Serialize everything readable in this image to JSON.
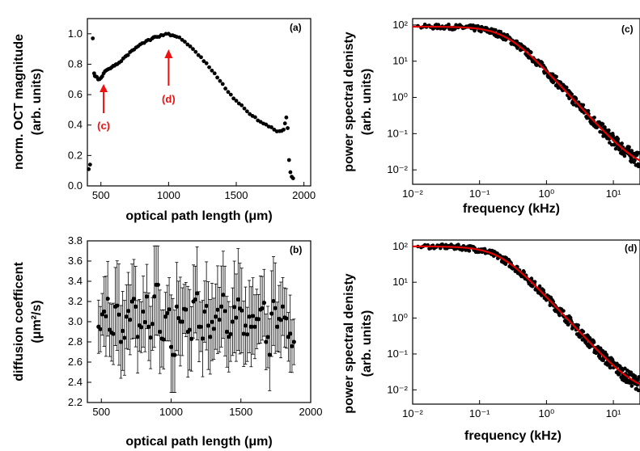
{
  "figure": {
    "panels": [
      {
        "tag": "(a)",
        "xlabel": "optical path length (μm)",
        "ylabel_line1": "norm. OCT magnitude",
        "ylabel_line2": "(arb. units)",
        "xticks": [
          "500",
          "1000",
          "1500",
          "2000"
        ],
        "yticks": [
          "0.0",
          "0.2",
          "0.4",
          "0.6",
          "0.8",
          "1.0"
        ],
        "annotations": [
          {
            "text": "(c)",
            "x": 520,
            "y": 0.78
          },
          {
            "text": "(d)",
            "x": 1000,
            "y": 0.97
          }
        ]
      },
      {
        "tag": "(b)",
        "xlabel": "optical path length (μm)",
        "ylabel_line1": "diffusion coefficent",
        "ylabel_line2": "(μm²/s)",
        "xticks": [
          "500",
          "1000",
          "1500",
          "2000"
        ],
        "yticks": [
          "2.2",
          "2.4",
          "2.6",
          "2.8",
          "3.0",
          "3.2",
          "3.4",
          "3.6",
          "3.8"
        ]
      },
      {
        "tag": "(c)",
        "xlabel": "frequency (kHz)",
        "ylabel_line1": "power spectral denisty",
        "ylabel_line2": "(arb. units)",
        "xticks": [
          "10⁻²",
          "10⁻¹",
          "10⁰",
          "10¹"
        ],
        "yticks": [
          "10⁻²",
          "10⁻¹",
          "10⁰",
          "10¹",
          "10²"
        ]
      },
      {
        "tag": "(d)",
        "xlabel": "frequency (kHz)",
        "ylabel_line1": "power spectral denisty",
        "ylabel_line2": "(arb. units)",
        "xticks": [
          "10⁻²",
          "10⁻¹",
          "10⁰",
          "10¹"
        ],
        "yticks": [
          "10⁻²",
          "10⁻¹",
          "10⁰",
          "10¹",
          "10²"
        ]
      }
    ]
  },
  "chart_data": [
    {
      "type": "scatter",
      "panel": "(a)",
      "xlim": [
        400,
        2050
      ],
      "ylim": [
        0.0,
        1.1
      ],
      "xlabel": "optical path length (μm)",
      "ylabel": "norm. OCT magnitude (arb. units)",
      "marker_color": "#000000",
      "series": [
        {
          "x": [
            410,
            420,
            440,
            450,
            460,
            480,
            500,
            520,
            540,
            560,
            580,
            600,
            620,
            650,
            680,
            700,
            730,
            760,
            790,
            820,
            850,
            880,
            900,
            930,
            960,
            1000,
            1030,
            1060,
            1100,
            1140,
            1180,
            1220,
            1260,
            1300,
            1340,
            1380,
            1420,
            1460,
            1500,
            1540,
            1580,
            1620,
            1660,
            1700,
            1740,
            1780,
            1820,
            1850,
            1870,
            1880,
            1890,
            1900,
            1910,
            1920
          ],
          "y": [
            0.11,
            0.14,
            0.97,
            0.74,
            0.72,
            0.7,
            0.71,
            0.74,
            0.76,
            0.77,
            0.78,
            0.79,
            0.8,
            0.82,
            0.85,
            0.86,
            0.89,
            0.91,
            0.93,
            0.94,
            0.96,
            0.97,
            0.98,
            0.98,
            0.99,
            1.0,
            0.99,
            0.98,
            0.96,
            0.93,
            0.9,
            0.86,
            0.82,
            0.78,
            0.74,
            0.69,
            0.64,
            0.6,
            0.56,
            0.53,
            0.49,
            0.46,
            0.43,
            0.41,
            0.39,
            0.37,
            0.36,
            0.37,
            0.45,
            0.38,
            0.17,
            0.09,
            0.06,
            0.05
          ]
        }
      ]
    },
    {
      "type": "scatter",
      "panel": "(b)",
      "xlim": [
        400,
        2000
      ],
      "ylim": [
        2.2,
        3.8
      ],
      "xlabel": "optical path length (μm)",
      "ylabel": "diffusion coefficent (μm²/s)",
      "error_bars": true,
      "series": [
        {
          "x": [
            480,
            520,
            560,
            600,
            640,
            680,
            720,
            760,
            800,
            840,
            880,
            920,
            960,
            1000,
            1040,
            1080,
            1120,
            1160,
            1200,
            1240,
            1280,
            1320,
            1360,
            1400,
            1440,
            1480,
            1520,
            1560,
            1600,
            1640,
            1680,
            1720,
            1760,
            1800,
            1840,
            1880
          ],
          "y": [
            2.95,
            3.1,
            2.92,
            3.15,
            2.8,
            3.05,
            3.2,
            2.85,
            3.1,
            2.95,
            3.25,
            2.9,
            3.05,
            2.75,
            3.15,
            3.0,
            2.9,
            3.2,
            2.95,
            3.1,
            2.85,
            3.05,
            3.15,
            2.9,
            3.0,
            3.22,
            2.88,
            3.05,
            2.95,
            3.12,
            2.8,
            3.08,
            2.95,
            3.15,
            2.85,
            2.8
          ],
          "err": [
            0.25,
            0.35,
            0.3,
            0.4,
            0.35,
            0.3,
            0.4,
            0.3,
            0.35,
            0.3,
            0.4,
            0.35,
            0.3,
            0.45,
            0.35,
            0.3,
            0.35,
            0.4,
            0.3,
            0.35,
            0.3,
            0.35,
            0.4,
            0.3,
            0.35,
            0.4,
            0.3,
            0.35,
            0.3,
            0.35,
            0.3,
            0.35,
            0.3,
            0.35,
            0.3,
            0.25
          ]
        }
      ]
    },
    {
      "type": "scatter",
      "panel": "(c)",
      "x_scale": "log",
      "y_scale": "log",
      "xlim": [
        0.01,
        25
      ],
      "ylim": [
        0.004,
        150
      ],
      "xlabel": "frequency (kHz)",
      "ylabel": "power spectral denisty (arb. units)",
      "marker_color": "#000000",
      "fit_color": "#e00000",
      "fit": {
        "amplitude": 90,
        "corner_kHz": 0.25,
        "floor": 0.009
      },
      "series": [
        {
          "x": [
            0.012,
            0.02,
            0.03,
            0.045,
            0.06,
            0.08,
            0.1,
            0.13,
            0.17,
            0.22,
            0.3,
            0.4,
            0.55,
            0.75,
            1.0,
            1.4,
            2.0,
            2.8,
            4.0,
            5.5,
            7.5,
            10,
            14,
            19,
            24
          ],
          "y": [
            95,
            92,
            90,
            88,
            89,
            87,
            84,
            80,
            72,
            62,
            45,
            31,
            17,
            9.5,
            5.6,
            3.0,
            1.4,
            0.72,
            0.33,
            0.17,
            0.09,
            0.05,
            0.03,
            0.018,
            0.012
          ]
        }
      ]
    },
    {
      "type": "scatter",
      "panel": "(d)",
      "x_scale": "log",
      "y_scale": "log",
      "xlim": [
        0.01,
        25
      ],
      "ylim": [
        0.004,
        150
      ],
      "xlabel": "frequency (kHz)",
      "ylabel": "power spectral denisty (arb. units)",
      "marker_color": "#000000",
      "fit_color": "#e00000",
      "fit": {
        "amplitude": 100,
        "corner_kHz": 0.2,
        "floor": 0.008
      },
      "series": [
        {
          "x": [
            0.012,
            0.02,
            0.03,
            0.045,
            0.06,
            0.08,
            0.1,
            0.13,
            0.17,
            0.22,
            0.3,
            0.4,
            0.55,
            0.75,
            1.0,
            1.4,
            2.0,
            2.8,
            4.0,
            5.5,
            7.5,
            10,
            14,
            19,
            24
          ],
          "y": [
            100,
            98,
            97,
            95,
            92,
            88,
            82,
            74,
            63,
            50,
            34,
            22,
            12,
            6.8,
            4.0,
            2.1,
            1.0,
            0.52,
            0.25,
            0.13,
            0.07,
            0.04,
            0.022,
            0.015,
            0.011
          ]
        }
      ]
    }
  ]
}
